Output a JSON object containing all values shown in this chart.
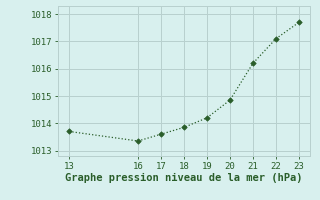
{
  "x": [
    13,
    16,
    17,
    18,
    19,
    20,
    21,
    22,
    23
  ],
  "y": [
    1013.7,
    1013.35,
    1013.6,
    1013.85,
    1014.2,
    1014.85,
    1016.2,
    1017.1,
    1017.7
  ],
  "line_color": "#2a5e2a",
  "marker_color": "#2a5e2a",
  "bg_color": "#d8f0ee",
  "grid_color": "#b8d0ce",
  "xlabel": "Graphe pression niveau de la mer (hPa)",
  "xlabel_color": "#2a5e2a",
  "xlim": [
    12.5,
    23.5
  ],
  "ylim": [
    1012.8,
    1018.3
  ],
  "xticks": [
    13,
    16,
    17,
    18,
    19,
    20,
    21,
    22,
    23
  ],
  "yticks": [
    1013,
    1014,
    1015,
    1016,
    1017,
    1018
  ],
  "tick_color": "#2a5e2a",
  "tick_fontsize": 6.5,
  "xlabel_fontsize": 7.5
}
